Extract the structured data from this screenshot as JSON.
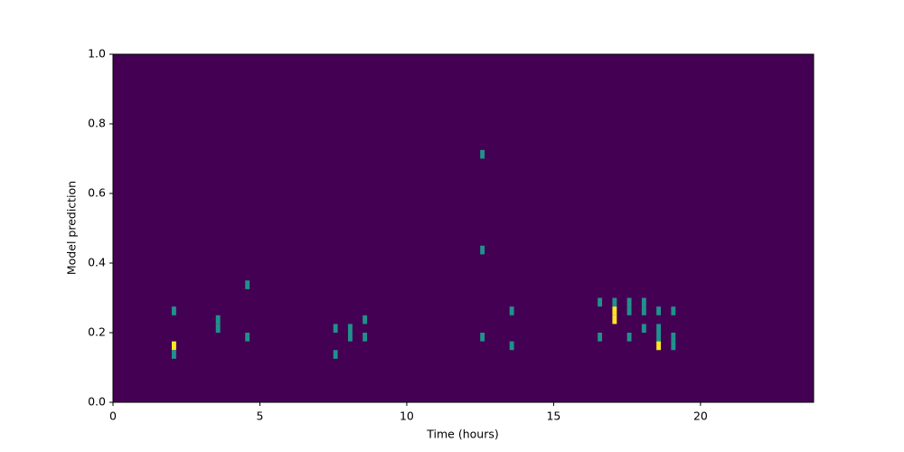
{
  "chart_data": {
    "type": "hist2d",
    "xlabel": "Time (hours)",
    "ylabel": "Model prediction",
    "xlim": [
      0,
      23.85
    ],
    "ylim": [
      0,
      1
    ],
    "xticks": [
      0,
      5,
      10,
      15,
      20
    ],
    "yticks": [
      {
        "value": 0,
        "label": "0.0"
      },
      {
        "value": 0.2,
        "label": "0.2"
      },
      {
        "value": 0.4,
        "label": "0.4"
      },
      {
        "value": 0.6,
        "label": "0.6"
      },
      {
        "value": 0.8,
        "label": "0.8"
      },
      {
        "value": 1,
        "label": "1.0"
      }
    ],
    "cmap": [
      "#440154",
      "#21918c",
      "#fde725"
    ],
    "cells": [
      {
        "x": [
          2.0,
          2.15
        ],
        "y": [
          0.25,
          0.275
        ],
        "count": 1
      },
      {
        "x": [
          2.0,
          2.15
        ],
        "y": [
          0.15,
          0.175
        ],
        "count": 2
      },
      {
        "x": [
          2.0,
          2.15
        ],
        "y": [
          0.125,
          0.15
        ],
        "count": 1
      },
      {
        "x": [
          3.5,
          3.65
        ],
        "y": [
          0.225,
          0.25
        ],
        "count": 1
      },
      {
        "x": [
          3.5,
          3.65
        ],
        "y": [
          0.2,
          0.225
        ],
        "count": 1
      },
      {
        "x": [
          4.5,
          4.65
        ],
        "y": [
          0.325,
          0.35
        ],
        "count": 1
      },
      {
        "x": [
          4.5,
          4.65
        ],
        "y": [
          0.175,
          0.2
        ],
        "count": 1
      },
      {
        "x": [
          7.5,
          7.65
        ],
        "y": [
          0.2,
          0.225
        ],
        "count": 1
      },
      {
        "x": [
          7.5,
          7.65
        ],
        "y": [
          0.125,
          0.15
        ],
        "count": 1
      },
      {
        "x": [
          8.0,
          8.15
        ],
        "y": [
          0.2,
          0.225
        ],
        "count": 1
      },
      {
        "x": [
          8.0,
          8.15
        ],
        "y": [
          0.175,
          0.2
        ],
        "count": 1
      },
      {
        "x": [
          8.5,
          8.65
        ],
        "y": [
          0.225,
          0.25
        ],
        "count": 1
      },
      {
        "x": [
          8.5,
          8.65
        ],
        "y": [
          0.175,
          0.2
        ],
        "count": 1
      },
      {
        "x": [
          12.5,
          12.65
        ],
        "y": [
          0.7,
          0.725
        ],
        "count": 1
      },
      {
        "x": [
          12.5,
          12.65
        ],
        "y": [
          0.425,
          0.45
        ],
        "count": 1
      },
      {
        "x": [
          12.5,
          12.65
        ],
        "y": [
          0.175,
          0.2
        ],
        "count": 1
      },
      {
        "x": [
          13.5,
          13.65
        ],
        "y": [
          0.25,
          0.275
        ],
        "count": 1
      },
      {
        "x": [
          13.5,
          13.65
        ],
        "y": [
          0.15,
          0.175
        ],
        "count": 1
      },
      {
        "x": [
          16.5,
          16.65
        ],
        "y": [
          0.275,
          0.3
        ],
        "count": 1
      },
      {
        "x": [
          16.5,
          16.65
        ],
        "y": [
          0.175,
          0.2
        ],
        "count": 1
      },
      {
        "x": [
          17.0,
          17.15
        ],
        "y": [
          0.275,
          0.3
        ],
        "count": 1
      },
      {
        "x": [
          17.0,
          17.15
        ],
        "y": [
          0.25,
          0.275
        ],
        "count": 2
      },
      {
        "x": [
          17.0,
          17.15
        ],
        "y": [
          0.225,
          0.25
        ],
        "count": 2
      },
      {
        "x": [
          17.5,
          17.65
        ],
        "y": [
          0.275,
          0.3
        ],
        "count": 1
      },
      {
        "x": [
          17.5,
          17.65
        ],
        "y": [
          0.25,
          0.275
        ],
        "count": 1
      },
      {
        "x": [
          17.5,
          17.65
        ],
        "y": [
          0.175,
          0.2
        ],
        "count": 1
      },
      {
        "x": [
          18.0,
          18.15
        ],
        "y": [
          0.275,
          0.3
        ],
        "count": 1
      },
      {
        "x": [
          18.0,
          18.15
        ],
        "y": [
          0.25,
          0.275
        ],
        "count": 1
      },
      {
        "x": [
          18.0,
          18.15
        ],
        "y": [
          0.2,
          0.225
        ],
        "count": 1
      },
      {
        "x": [
          18.5,
          18.65
        ],
        "y": [
          0.25,
          0.275
        ],
        "count": 1
      },
      {
        "x": [
          18.5,
          18.65
        ],
        "y": [
          0.2,
          0.225
        ],
        "count": 1
      },
      {
        "x": [
          18.5,
          18.65
        ],
        "y": [
          0.175,
          0.2
        ],
        "count": 1
      },
      {
        "x": [
          18.5,
          18.65
        ],
        "y": [
          0.15,
          0.175
        ],
        "count": 2
      },
      {
        "x": [
          19.0,
          19.15
        ],
        "y": [
          0.25,
          0.275
        ],
        "count": 1
      },
      {
        "x": [
          19.0,
          19.15
        ],
        "y": [
          0.175,
          0.2
        ],
        "count": 1
      },
      {
        "x": [
          19.0,
          19.15
        ],
        "y": [
          0.15,
          0.175
        ],
        "count": 1
      }
    ]
  }
}
